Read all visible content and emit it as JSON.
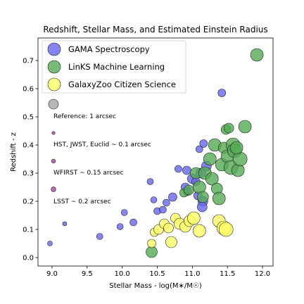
{
  "chart_data": {
    "type": "scatter",
    "title": "Redshift, Stellar Mass, and Estimated Einstein Radius",
    "xlabel": "Stellar Mass - log(M∗/M☉)",
    "ylabel": "Redshift - z",
    "xlim": [
      8.8,
      12.15
    ],
    "ylim": [
      -0.03,
      0.78
    ],
    "xticks": [
      "9.0",
      "9.5",
      "10.0",
      "10.5",
      "11.0",
      "11.5",
      "12.0"
    ],
    "yticks": [
      "0.0",
      "0.1",
      "0.2",
      "0.3",
      "0.4",
      "0.5",
      "0.6",
      "0.7"
    ],
    "grid": false,
    "legend_position": "top-left",
    "series": [
      {
        "name": "GAMA Spectroscopy",
        "color": "#6666ee",
        "points": [
          {
            "x": 8.97,
            "y": 0.05,
            "r": 3.5
          },
          {
            "x": 9.18,
            "y": 0.12,
            "r": 3
          },
          {
            "x": 9.68,
            "y": 0.075,
            "r": 4.5
          },
          {
            "x": 9.97,
            "y": 0.11,
            "r": 4.5
          },
          {
            "x": 10.03,
            "y": 0.16,
            "r": 4.5
          },
          {
            "x": 10.16,
            "y": 0.125,
            "r": 5
          },
          {
            "x": 10.4,
            "y": 0.27,
            "r": 4.5
          },
          {
            "x": 10.45,
            "y": 0.205,
            "r": 4.5
          },
          {
            "x": 10.5,
            "y": 0.165,
            "r": 5
          },
          {
            "x": 10.58,
            "y": 0.17,
            "r": 5
          },
          {
            "x": 10.63,
            "y": 0.195,
            "r": 5
          },
          {
            "x": 10.72,
            "y": 0.215,
            "r": 6
          },
          {
            "x": 10.8,
            "y": 0.315,
            "r": 5
          },
          {
            "x": 10.92,
            "y": 0.31,
            "r": 6
          },
          {
            "x": 10.9,
            "y": 0.25,
            "r": 6
          },
          {
            "x": 10.93,
            "y": 0.235,
            "r": 6
          },
          {
            "x": 11.0,
            "y": 0.28,
            "r": 7
          },
          {
            "x": 11.05,
            "y": 0.27,
            "r": 6
          },
          {
            "x": 11.1,
            "y": 0.385,
            "r": 5
          },
          {
            "x": 11.12,
            "y": 0.3,
            "r": 7
          },
          {
            "x": 11.16,
            "y": 0.405,
            "r": 5.5
          },
          {
            "x": 11.2,
            "y": 0.325,
            "r": 7
          },
          {
            "x": 11.08,
            "y": 0.22,
            "r": 6
          },
          {
            "x": 11.15,
            "y": 0.2,
            "r": 7
          },
          {
            "x": 11.14,
            "y": 0.18,
            "r": 7
          },
          {
            "x": 11.42,
            "y": 0.585,
            "r": 5.5
          }
        ]
      },
      {
        "name": "LinKS Machine Learning",
        "color": "#55aa55",
        "points": [
          {
            "x": 10.42,
            "y": 0.02,
            "r": 8
          },
          {
            "x": 10.88,
            "y": 0.23,
            "r": 6
          },
          {
            "x": 10.95,
            "y": 0.24,
            "r": 7
          },
          {
            "x": 11.05,
            "y": 0.3,
            "r": 8
          },
          {
            "x": 11.1,
            "y": 0.25,
            "r": 9
          },
          {
            "x": 11.15,
            "y": 0.215,
            "r": 8
          },
          {
            "x": 11.18,
            "y": 0.3,
            "r": 9
          },
          {
            "x": 11.25,
            "y": 0.35,
            "r": 9
          },
          {
            "x": 11.28,
            "y": 0.28,
            "r": 9
          },
          {
            "x": 11.32,
            "y": 0.4,
            "r": 9
          },
          {
            "x": 11.35,
            "y": 0.245,
            "r": 8
          },
          {
            "x": 11.38,
            "y": 0.21,
            "r": 9
          },
          {
            "x": 11.42,
            "y": 0.33,
            "r": 9
          },
          {
            "x": 11.45,
            "y": 0.39,
            "r": 8
          },
          {
            "x": 11.48,
            "y": 0.455,
            "r": 7
          },
          {
            "x": 11.5,
            "y": 0.36,
            "r": 9
          },
          {
            "x": 11.52,
            "y": 0.46,
            "r": 7
          },
          {
            "x": 11.55,
            "y": 0.32,
            "r": 10
          },
          {
            "x": 11.58,
            "y": 0.4,
            "r": 10
          },
          {
            "x": 11.6,
            "y": 0.38,
            "r": 10
          },
          {
            "x": 11.65,
            "y": 0.31,
            "r": 9
          },
          {
            "x": 11.68,
            "y": 0.35,
            "r": 10
          },
          {
            "x": 11.63,
            "y": 0.39,
            "r": 9
          },
          {
            "x": 11.75,
            "y": 0.465,
            "r": 9
          },
          {
            "x": 11.92,
            "y": 0.72,
            "r": 9
          }
        ]
      },
      {
        "name": "GalaxyZoo Citizen Science",
        "color": "#ffff66",
        "points": [
          {
            "x": 10.42,
            "y": 0.05,
            "r": 6
          },
          {
            "x": 10.46,
            "y": 0.09,
            "r": 6
          },
          {
            "x": 10.52,
            "y": 0.1,
            "r": 7
          },
          {
            "x": 10.6,
            "y": 0.12,
            "r": 7
          },
          {
            "x": 10.66,
            "y": 0.105,
            "r": 7
          },
          {
            "x": 10.7,
            "y": 0.055,
            "r": 8
          },
          {
            "x": 10.76,
            "y": 0.14,
            "r": 7
          },
          {
            "x": 10.82,
            "y": 0.12,
            "r": 8
          },
          {
            "x": 10.9,
            "y": 0.11,
            "r": 8
          },
          {
            "x": 10.96,
            "y": 0.13,
            "r": 8
          },
          {
            "x": 11.02,
            "y": 0.14,
            "r": 9
          },
          {
            "x": 11.1,
            "y": 0.095,
            "r": 9
          },
          {
            "x": 11.38,
            "y": 0.13,
            "r": 9
          },
          {
            "x": 11.45,
            "y": 0.105,
            "r": 10
          },
          {
            "x": 11.48,
            "y": 0.1,
            "r": 10
          }
        ]
      }
    ],
    "references": [
      {
        "label": "Reference: 1 arcsec",
        "color": "#aaaaaa",
        "r": 7
      },
      {
        "label": "HST, JWST, Euclid ~ 0.1 arcsec",
        "color": "#aa55aa",
        "r": 2.2
      },
      {
        "label": "WFIRST ~ 0.15 arcsec",
        "color": "#aa55aa",
        "r": 2.8
      },
      {
        "label": "LSST ~ 0.2 arcsec",
        "color": "#aa55aa",
        "r": 3.4
      }
    ]
  }
}
